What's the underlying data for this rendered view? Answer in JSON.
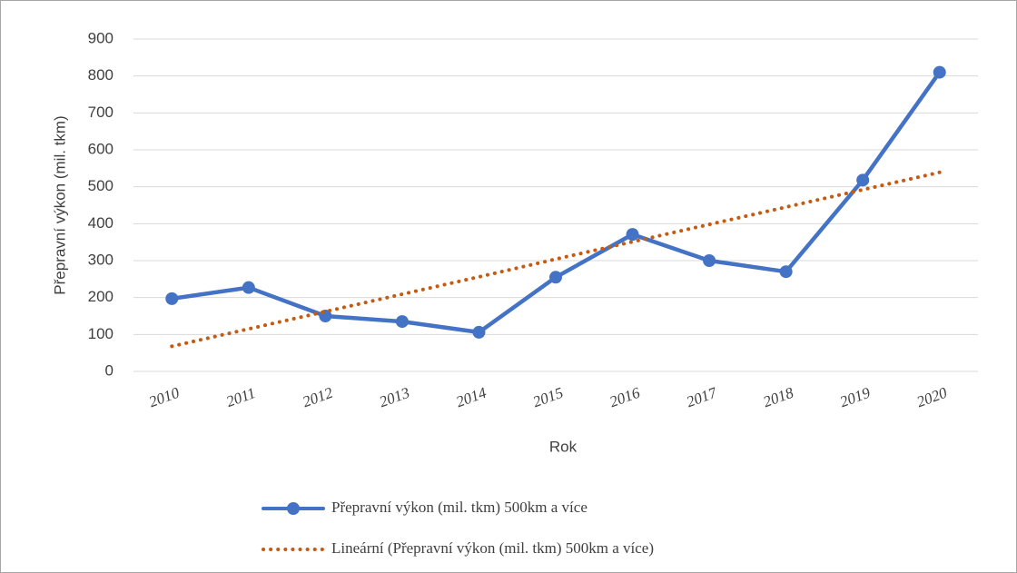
{
  "chart_data": {
    "type": "line",
    "x_label": "Rok",
    "y_label": "Přepravní výkon (mil. tkm)",
    "categories": [
      "2010",
      "2011",
      "2012",
      "2013",
      "2014",
      "2015",
      "2016",
      "2017",
      "2018",
      "2019",
      "2020"
    ],
    "series": [
      {
        "name": "Přepravní výkon (mil. tkm) 500km a více",
        "color": "#4472c4",
        "style": "solid",
        "marker": "circle",
        "values": [
          197,
          227,
          150,
          135,
          106,
          255,
          371,
          300,
          270,
          518,
          810
        ]
      },
      {
        "name": "Lineární (Přepravní výkon (mil. tkm) 500km a více)",
        "color": "#c55a11",
        "style": "dotted",
        "marker": "none",
        "values": [
          68,
          115,
          162,
          209,
          256,
          304,
          351,
          398,
          445,
          492,
          539
        ]
      }
    ],
    "ylim": [
      0,
      900
    ],
    "yticks": [
      0,
      100,
      200,
      300,
      400,
      500,
      600,
      700,
      800,
      900
    ],
    "grid": true
  }
}
